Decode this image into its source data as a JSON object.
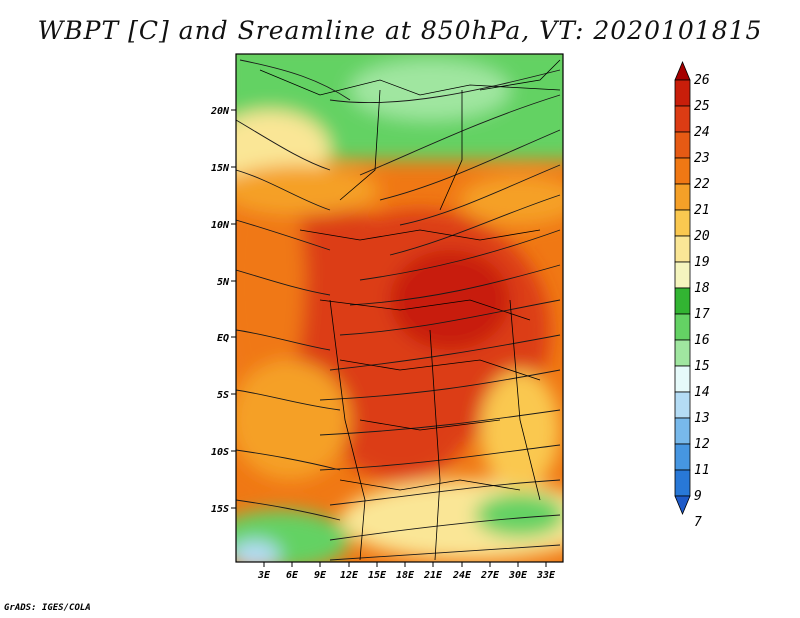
{
  "title": "WBPT [C] and Sreamline at 850hPa, VT: 2020101815",
  "credit": "GrADS: IGES/COLA",
  "map": {
    "x_ticks": [
      "3E",
      "6E",
      "9E",
      "12E",
      "15E",
      "18E",
      "21E",
      "24E",
      "27E",
      "30E",
      "33E"
    ],
    "y_ticks": [
      "20N",
      "15N",
      "10N",
      "5N",
      "EQ",
      "5S",
      "10S",
      "15S"
    ]
  },
  "colorbar": {
    "labels": [
      "26",
      "25",
      "24",
      "23",
      "22",
      "21",
      "20",
      "19",
      "18",
      "17",
      "16",
      "15",
      "14",
      "13",
      "12",
      "11",
      "9",
      "7"
    ],
    "colors": [
      "#a50000",
      "#c81e0a",
      "#dc3c14",
      "#e65a14",
      "#f07814",
      "#f5a028",
      "#fac850",
      "#fae696",
      "#f5f5be",
      "#32b432",
      "#64d264",
      "#a0e6a0",
      "#e6fafa",
      "#b4dcf5",
      "#78b9eb",
      "#4696e1",
      "#2878d7",
      "#1e5ac8"
    ]
  }
}
